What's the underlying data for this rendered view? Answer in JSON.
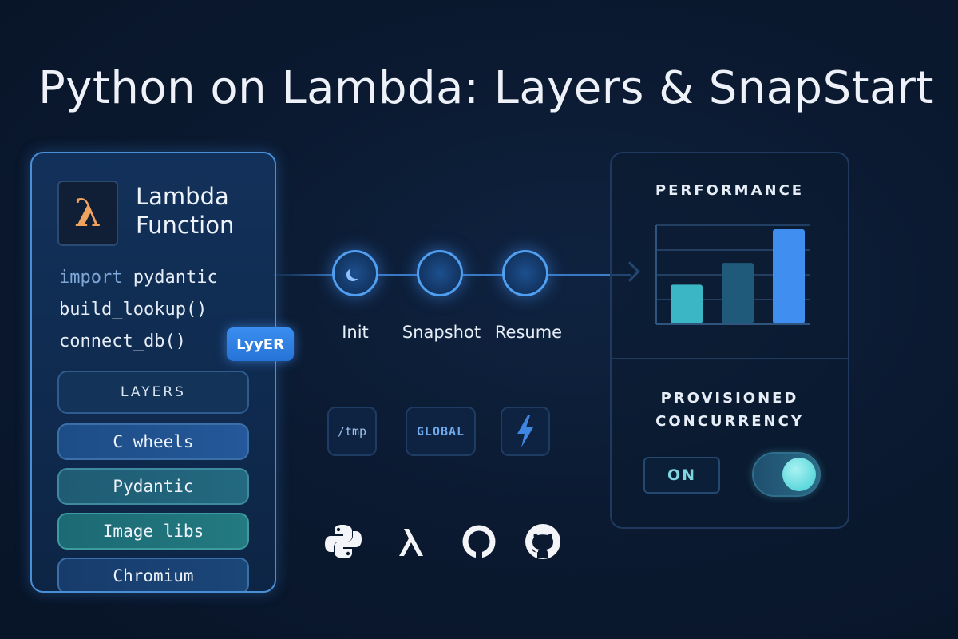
{
  "title": "Python on Lambda: Layers & SnapStart",
  "function_panel": {
    "logo_glyph": "λ",
    "name_line1": "Lambda",
    "name_line2": "Function",
    "code": [
      {
        "keyword": "import",
        "rest": " pydantic"
      },
      {
        "keyword": "",
        "rest": "build_lookup()"
      },
      {
        "keyword": "",
        "rest": "connect_db()"
      }
    ],
    "badge": "LyyER",
    "layers_header": "LAYERS",
    "layers": [
      "C wheels",
      "Pydantic",
      "Image libs",
      "Chromium"
    ]
  },
  "lifecycle": {
    "stages": [
      "Init",
      "Snapshot",
      "Resume"
    ],
    "tiles": [
      "/tmp",
      "GLOBAL",
      "lightning-icon"
    ]
  },
  "brand_icons": [
    "python-icon",
    "lambda-icon",
    "open-source-icon",
    "github-icon"
  ],
  "performance_panel": {
    "title": "PERFORMANCE",
    "chart_data": {
      "type": "bar",
      "categories": [
        "",
        "",
        ""
      ],
      "values": [
        40,
        62,
        96
      ],
      "ylim": [
        0,
        100
      ],
      "grid": true,
      "colors": [
        "#3bb6c4",
        "#1f5a7a",
        "#3f8ef0"
      ]
    },
    "pc_title_line1": "PROVISIONED",
    "pc_title_line2": "CONCURRENCY",
    "toggle_label": "ON",
    "toggle_state": true
  }
}
